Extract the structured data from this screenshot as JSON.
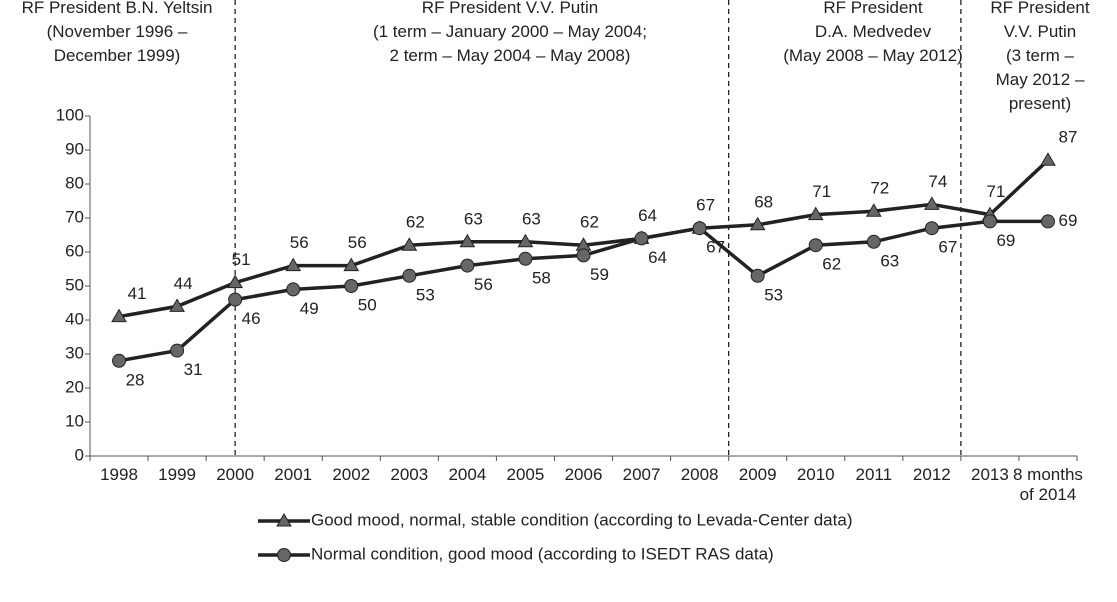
{
  "chart_data": {
    "type": "line",
    "categories": [
      "1998",
      "1999",
      "2000",
      "2001",
      "2002",
      "2003",
      "2004",
      "2005",
      "2006",
      "2007",
      "2008",
      "2009",
      "2010",
      "2011",
      "2012",
      "2013",
      "8 months of 2014"
    ],
    "series": [
      {
        "name": "Good mood, normal, stable condition (according to Levada-Center data)",
        "color": "#666666",
        "marker": "triangle",
        "values": [
          41,
          44,
          51,
          56,
          56,
          62,
          63,
          63,
          62,
          64,
          67,
          68,
          71,
          72,
          74,
          71,
          87
        ]
      },
      {
        "name": "Normal condition, good mood (according to ISEDT RAS data)",
        "color": "#666666",
        "marker": "circle",
        "values": [
          28,
          31,
          46,
          49,
          50,
          53,
          56,
          58,
          59,
          64,
          67,
          53,
          62,
          63,
          67,
          69,
          69
        ]
      }
    ],
    "ylim": [
      0,
      100
    ],
    "yticks": [
      0,
      10,
      20,
      30,
      40,
      50,
      60,
      70,
      80,
      90,
      100
    ],
    "annotations": [
      {
        "lines": [
          "RF President B.N. Yeltsin",
          "(November 1996 –",
          "December 1999)"
        ]
      },
      {
        "lines": [
          "RF President V.V. Putin",
          "(1 term – January 2000  – May 2004;",
          "2 term –  May 2004 – May 2008)"
        ]
      },
      {
        "lines": [
          "RF President",
          "D.A. Medvedev",
          "(May 2008 – May 2012)"
        ]
      },
      {
        "lines": [
          "RF President",
          "V.V. Putin",
          "(3 term –",
          "May 2012 –",
          "present)"
        ]
      }
    ]
  }
}
